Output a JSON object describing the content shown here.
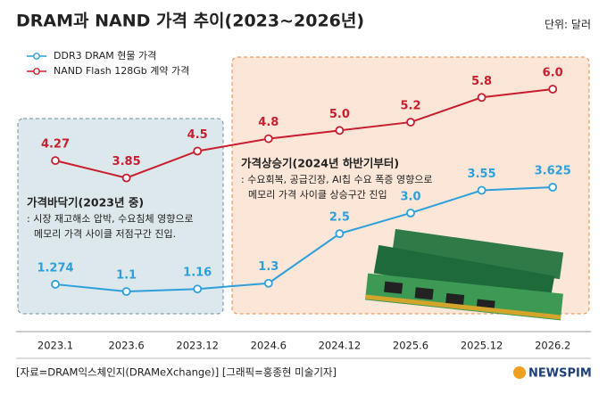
{
  "chart_data": {
    "type": "line",
    "title": "DRAM과 NAND 가격 추이(2023~2026년)",
    "unit": "단위: 달러",
    "categories": [
      "2023.1",
      "2023.6",
      "2023.12",
      "2024.6",
      "2024.12",
      "2025.6",
      "2025.12",
      "2026.2"
    ],
    "series": [
      {
        "name": "DDR3 DRAM 현물 가격",
        "color": "#2d9fdc",
        "values": [
          1.274,
          1.1,
          1.16,
          1.3,
          2.5,
          3.0,
          3.55,
          3.625
        ],
        "value_labels": [
          "1.274",
          "1.1",
          "1.16",
          "1.3",
          "2.5",
          "3.0",
          "3.55",
          "3.625"
        ]
      },
      {
        "name": "NAND Flash 128Gb 계약 가격",
        "color": "#c81e2e",
        "values": [
          4.27,
          3.85,
          4.5,
          4.8,
          5.0,
          5.2,
          5.8,
          6.0
        ],
        "value_labels": [
          "4.27",
          "3.85",
          "4.5",
          "4.8",
          "5.0",
          "5.2",
          "5.8",
          "6.0"
        ]
      }
    ],
    "annotations": [
      {
        "title": "가격바닥기(2023년 중)",
        "lines": [
          ": 시장 재고해소 압박, 수요침체 영향으로",
          "메모리 가격 사이클 저점구간 진입."
        ]
      },
      {
        "title": "가격상승기(2024년 하반기부터)",
        "lines": [
          ": 수요회복, 공급긴장, AI칩 수요 폭증 영향으로",
          "메모리 가격 사이클 상승구간 진입"
        ]
      }
    ],
    "source": "[자료=DRAM익스체인지(DRAMeXchange)] [그래픽=홍종현 미술기자]",
    "logo": "NEWSPIM"
  }
}
